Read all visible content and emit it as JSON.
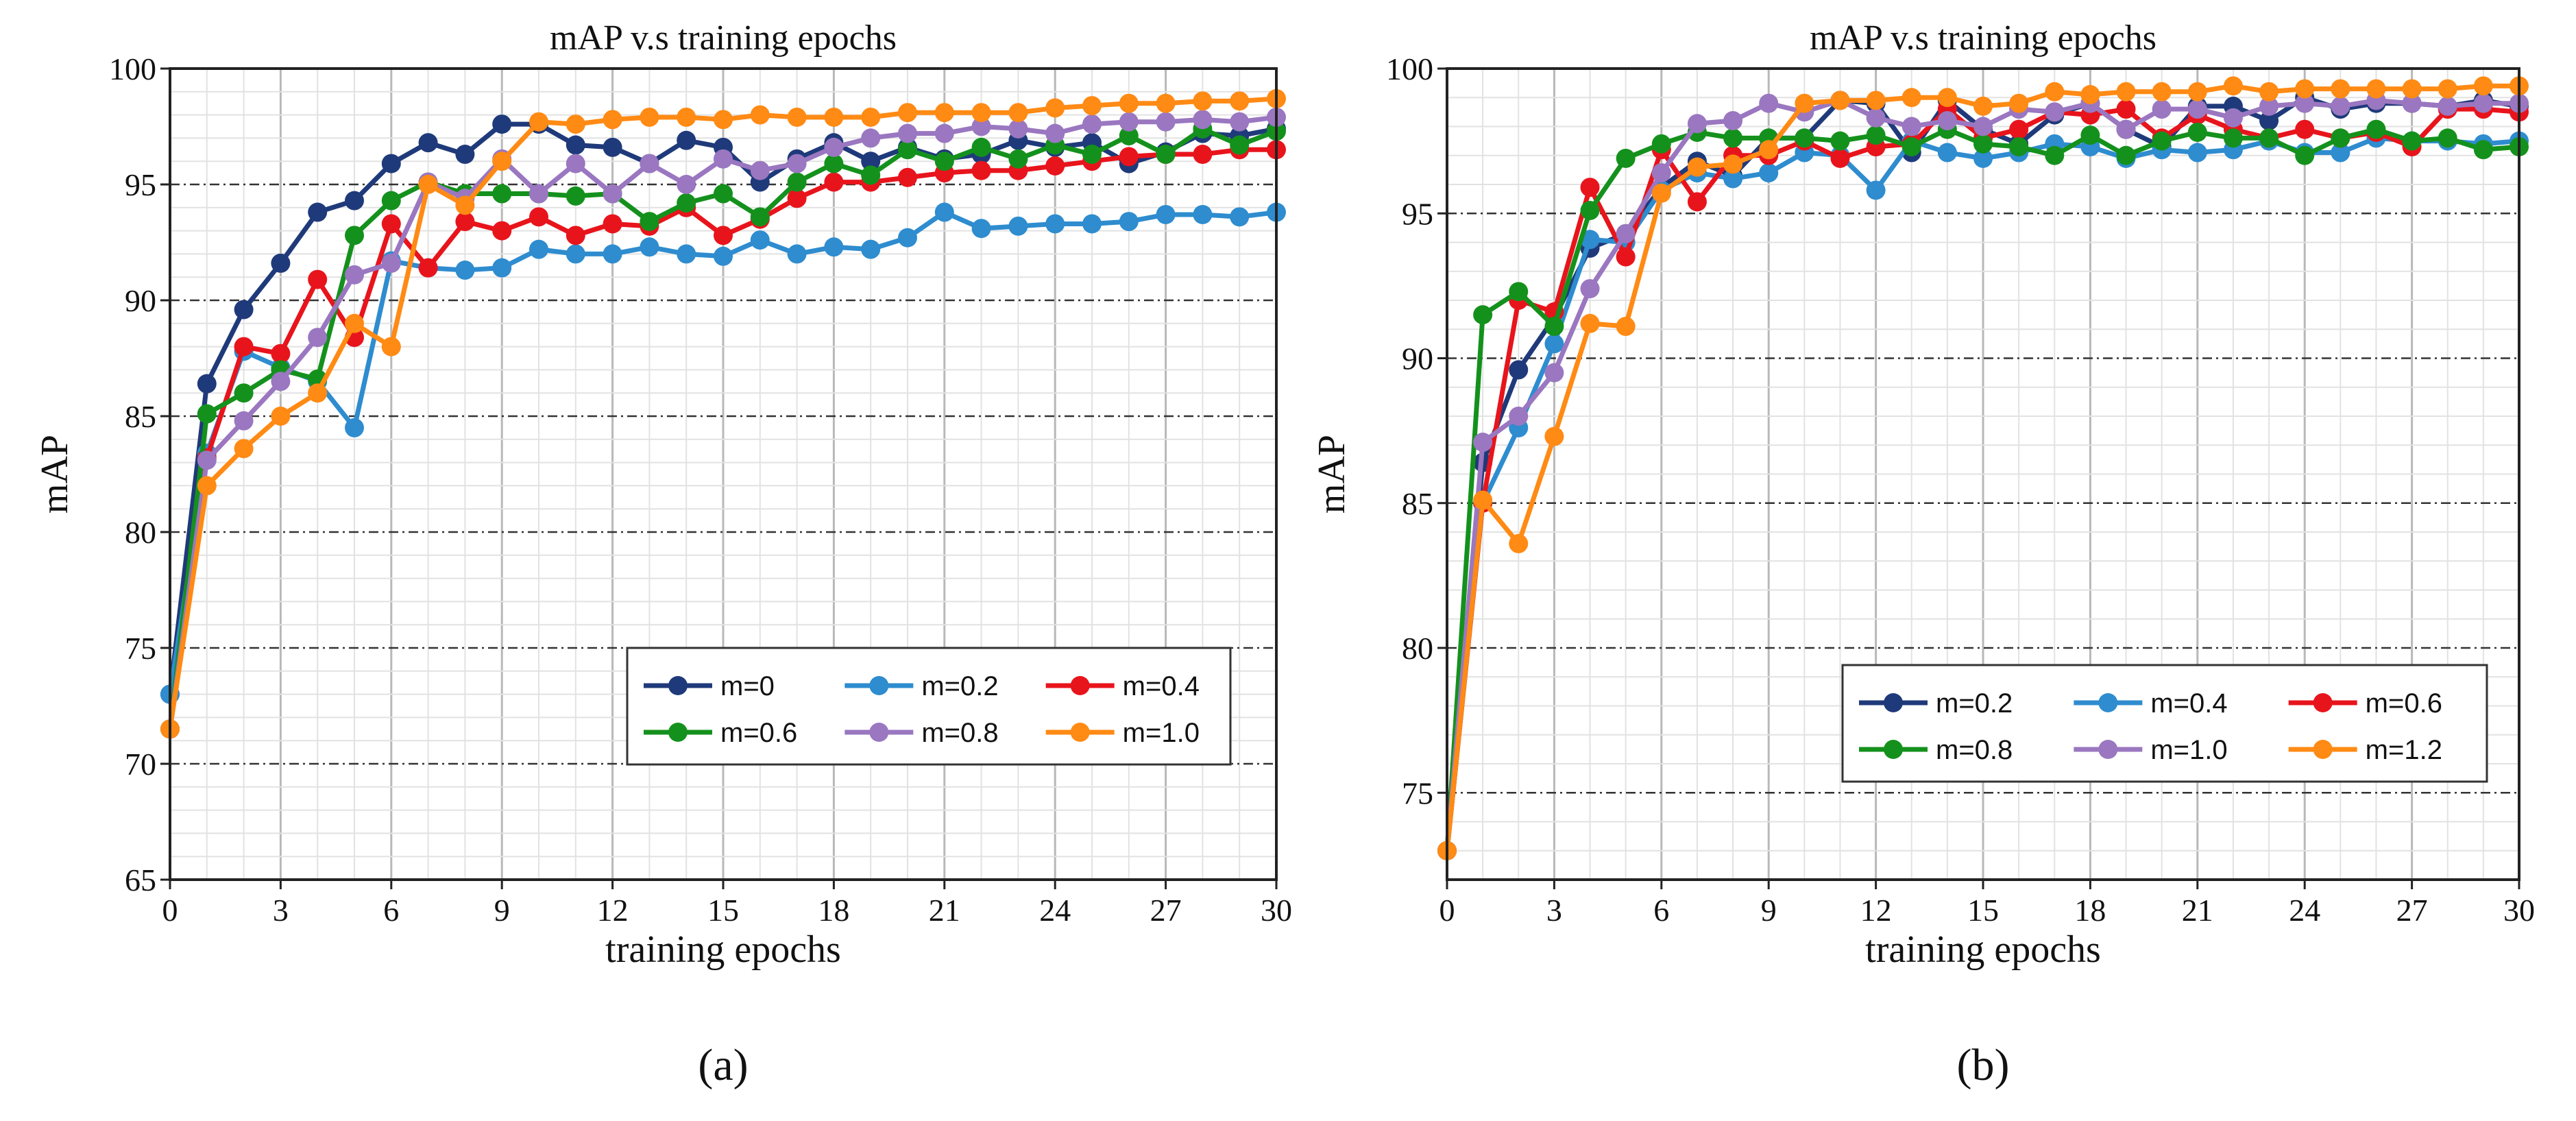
{
  "chart_data": [
    {
      "type": "line",
      "title": "mAP v.s training epochs",
      "xlabel": "training epochs",
      "ylabel": "mAP",
      "xlim": [
        0,
        30
      ],
      "ylim": [
        65,
        100
      ],
      "xticks": [
        0,
        3,
        6,
        9,
        12,
        15,
        18,
        21,
        24,
        27,
        30
      ],
      "yticks": [
        65,
        70,
        75,
        80,
        85,
        90,
        95,
        100
      ],
      "grid": true,
      "legend_position": "lower-right",
      "caption": "(a)",
      "x": [
        0,
        1,
        2,
        3,
        4,
        5,
        6,
        7,
        8,
        9,
        10,
        11,
        12,
        13,
        14,
        15,
        16,
        17,
        18,
        19,
        20,
        21,
        22,
        23,
        24,
        25,
        26,
        27,
        28,
        29,
        30
      ],
      "series": [
        {
          "name": "m=0",
          "color": "#1f3a7a",
          "values": [
            73.0,
            86.4,
            89.6,
            91.6,
            93.8,
            94.3,
            95.9,
            96.8,
            96.3,
            97.6,
            97.6,
            96.7,
            96.6,
            95.9,
            96.9,
            96.6,
            95.1,
            96.1,
            96.8,
            96.0,
            96.6,
            96.1,
            96.3,
            96.9,
            96.6,
            96.8,
            95.9,
            96.4,
            97.2,
            97.1,
            97.4
          ]
        },
        {
          "name": "m=0.2",
          "color": "#2e8ccf",
          "values": [
            73.0,
            83.4,
            87.8,
            87.1,
            86.5,
            84.5,
            91.7,
            91.4,
            91.3,
            91.4,
            92.2,
            92.0,
            92.0,
            92.3,
            92.0,
            91.9,
            92.6,
            92.0,
            92.3,
            92.2,
            92.7,
            93.8,
            93.1,
            93.2,
            93.3,
            93.3,
            93.4,
            93.7,
            93.7,
            93.6,
            93.8
          ]
        },
        {
          "name": "m=0.4",
          "color": "#e8141c",
          "values": [
            71.5,
            83.2,
            88.0,
            87.7,
            90.9,
            88.4,
            93.3,
            91.4,
            93.4,
            93.0,
            93.6,
            92.8,
            93.3,
            93.2,
            94.0,
            92.8,
            93.5,
            94.4,
            95.1,
            95.1,
            95.3,
            95.5,
            95.6,
            95.6,
            95.8,
            96.0,
            96.2,
            96.3,
            96.3,
            96.5,
            96.5
          ]
        },
        {
          "name": "m=0.6",
          "color": "#14911c",
          "values": [
            71.5,
            85.1,
            86.0,
            87.0,
            86.6,
            92.8,
            94.3,
            95.1,
            94.6,
            94.6,
            94.6,
            94.5,
            94.6,
            93.4,
            94.2,
            94.6,
            93.6,
            95.1,
            95.9,
            95.4,
            96.5,
            96.0,
            96.6,
            96.1,
            96.7,
            96.3,
            97.1,
            96.3,
            97.4,
            96.7,
            97.3
          ]
        },
        {
          "name": "m=0.8",
          "color": "#9a77c0",
          "values": [
            71.5,
            83.1,
            84.8,
            86.5,
            88.4,
            91.1,
            91.6,
            95.1,
            94.4,
            96.1,
            94.6,
            95.9,
            94.6,
            95.9,
            95.0,
            96.1,
            95.6,
            95.9,
            96.6,
            97.0,
            97.2,
            97.2,
            97.5,
            97.4,
            97.2,
            97.6,
            97.7,
            97.7,
            97.8,
            97.7,
            97.9
          ]
        },
        {
          "name": "m=1.0",
          "color": "#ff8a14",
          "values": [
            71.5,
            82.0,
            83.6,
            85.0,
            86.0,
            89.0,
            88.0,
            95.0,
            94.1,
            96.0,
            97.7,
            97.6,
            97.8,
            97.9,
            97.9,
            97.8,
            98.0,
            97.9,
            97.9,
            97.9,
            98.1,
            98.1,
            98.1,
            98.1,
            98.3,
            98.4,
            98.5,
            98.5,
            98.6,
            98.6,
            98.7
          ]
        }
      ]
    },
    {
      "type": "line",
      "title": "mAP v.s training epochs",
      "xlabel": "training epochs",
      "ylabel": "mAP",
      "xlim": [
        0,
        30
      ],
      "ylim": [
        72,
        100
      ],
      "xticks": [
        0,
        3,
        6,
        9,
        12,
        15,
        18,
        21,
        24,
        27,
        30
      ],
      "yticks": [
        75,
        80,
        85,
        90,
        95,
        100
      ],
      "grid": true,
      "legend_position": "lower-right",
      "caption": "(b)",
      "x": [
        0,
        1,
        2,
        3,
        4,
        5,
        6,
        7,
        8,
        9,
        10,
        11,
        12,
        13,
        14,
        15,
        16,
        17,
        18,
        19,
        20,
        21,
        22,
        23,
        24,
        25,
        26,
        27,
        28,
        29,
        30
      ],
      "series": [
        {
          "name": "m=0.2",
          "color": "#1f3a7a",
          "values": [
            73.0,
            86.4,
            89.6,
            91.4,
            93.8,
            94.3,
            95.9,
            96.8,
            96.3,
            97.6,
            97.6,
            98.9,
            98.8,
            97.1,
            98.9,
            97.9,
            97.4,
            98.4,
            98.8,
            97.9,
            97.3,
            98.7,
            98.7,
            98.2,
            99.0,
            98.6,
            98.8,
            98.8,
            98.7,
            98.9,
            98.7
          ]
        },
        {
          "name": "m=0.4",
          "color": "#2e8ccf",
          "values": [
            73.0,
            85.0,
            87.6,
            90.5,
            94.1,
            94.0,
            95.8,
            96.4,
            96.2,
            96.4,
            97.1,
            97.0,
            95.8,
            97.5,
            97.1,
            96.9,
            97.1,
            97.4,
            97.3,
            96.9,
            97.2,
            97.1,
            97.2,
            97.5,
            97.1,
            97.1,
            97.6,
            97.5,
            97.5,
            97.4,
            97.5
          ]
        },
        {
          "name": "m=0.6",
          "color": "#e8141c",
          "values": [
            73.0,
            85.0,
            92.0,
            91.6,
            95.9,
            93.5,
            97.2,
            95.4,
            97.0,
            97.0,
            97.5,
            96.9,
            97.3,
            97.4,
            98.6,
            97.6,
            97.9,
            98.5,
            98.4,
            98.6,
            97.6,
            98.4,
            97.9,
            97.6,
            97.9,
            97.6,
            97.8,
            97.3,
            98.6,
            98.6,
            98.5
          ]
        },
        {
          "name": "m=0.8",
          "color": "#14911c",
          "values": [
            73.0,
            91.5,
            92.3,
            91.1,
            95.1,
            96.9,
            97.4,
            97.8,
            97.6,
            97.6,
            97.6,
            97.5,
            97.7,
            97.3,
            97.9,
            97.4,
            97.3,
            97.0,
            97.7,
            97.0,
            97.5,
            97.8,
            97.6,
            97.6,
            97.0,
            97.6,
            97.9,
            97.5,
            97.6,
            97.2,
            97.3
          ]
        },
        {
          "name": "m=1.0",
          "color": "#9a77c0",
          "values": [
            73.0,
            87.1,
            88.0,
            89.5,
            92.4,
            94.3,
            96.4,
            98.1,
            98.2,
            98.8,
            98.5,
            98.9,
            98.3,
            98.0,
            98.2,
            98.0,
            98.6,
            98.5,
            98.8,
            97.9,
            98.6,
            98.6,
            98.3,
            98.7,
            98.8,
            98.7,
            98.9,
            98.8,
            98.7,
            98.8,
            98.8
          ]
        },
        {
          "name": "m=1.2",
          "color": "#ff8a14",
          "values": [
            73.0,
            85.1,
            83.6,
            87.3,
            91.2,
            91.1,
            95.7,
            96.6,
            96.7,
            97.2,
            98.8,
            98.9,
            98.9,
            99.0,
            99.0,
            98.7,
            98.8,
            99.2,
            99.1,
            99.2,
            99.2,
            99.2,
            99.4,
            99.2,
            99.3,
            99.3,
            99.3,
            99.3,
            99.3,
            99.4,
            99.4
          ]
        }
      ]
    }
  ]
}
